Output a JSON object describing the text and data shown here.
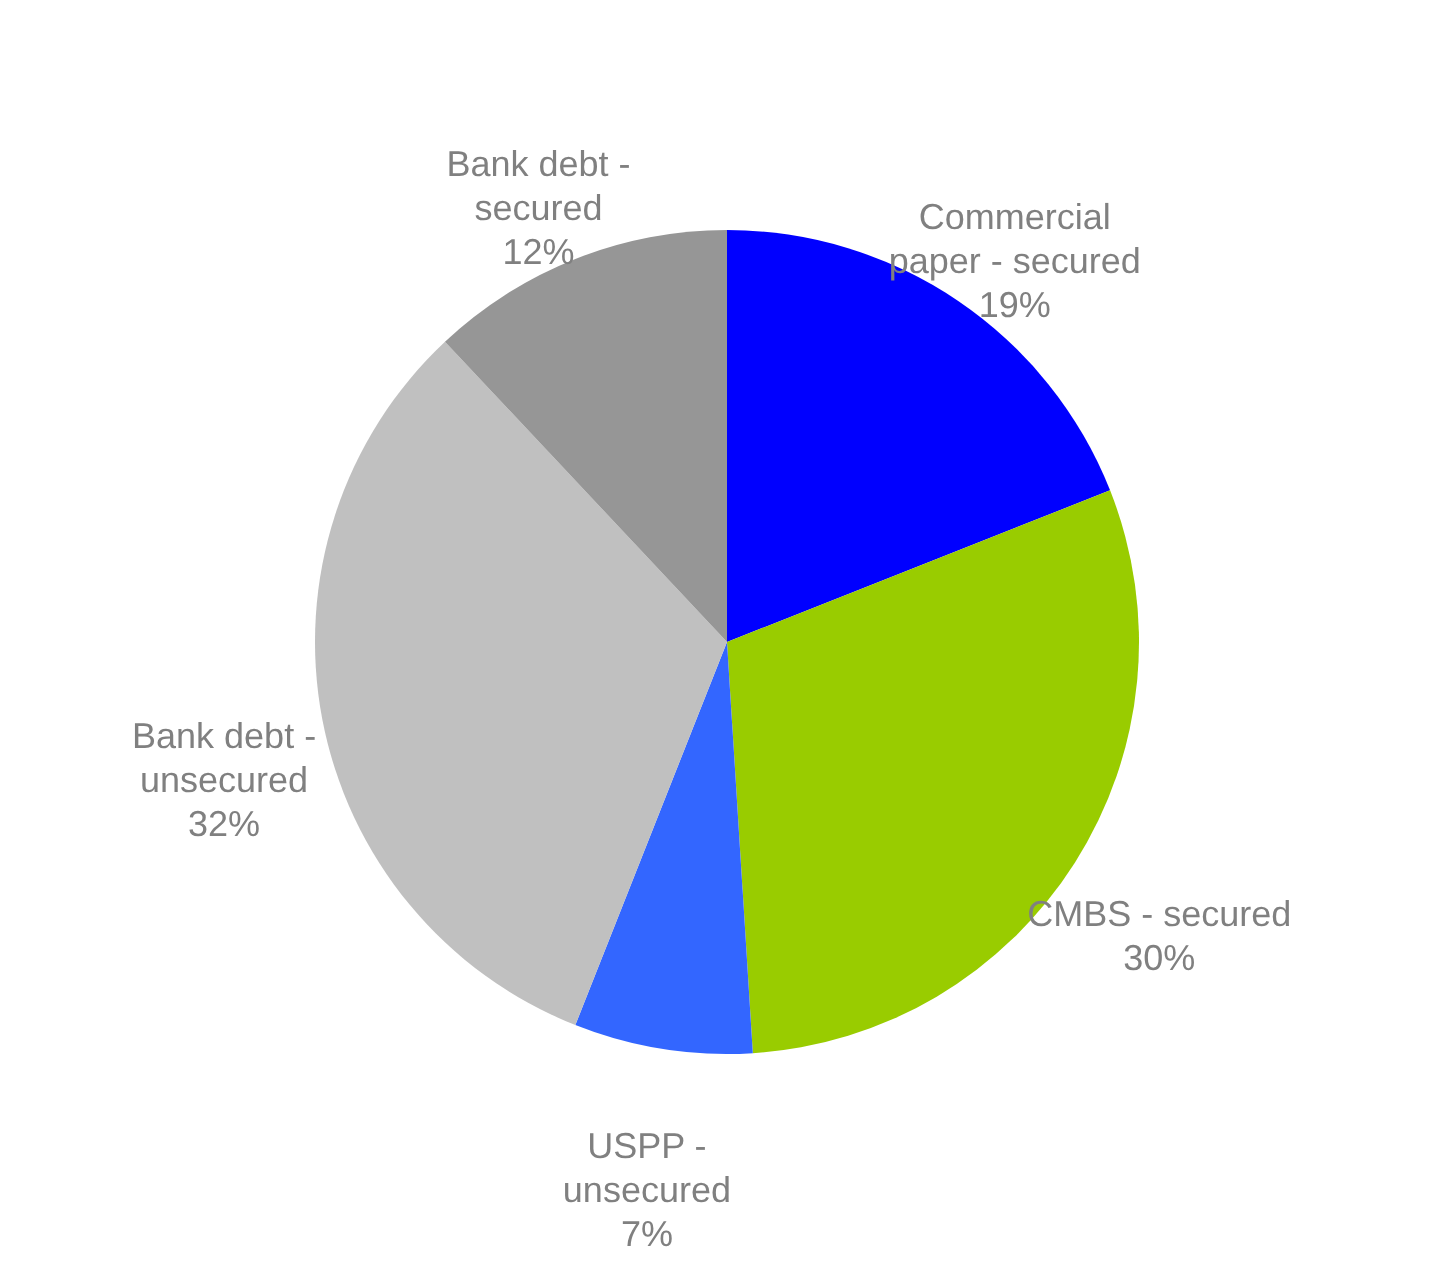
{
  "chart_data": {
    "type": "pie",
    "categories": [
      "Commercial paper - secured",
      "CMBS - secured",
      "USPP - unsecured",
      "Bank debt - unsecured",
      "Bank debt - secured"
    ],
    "values": [
      19,
      30,
      7,
      32,
      12
    ],
    "colors": [
      "#0000ff",
      "#99cc00",
      "#3366ff",
      "#c0c0c0",
      "#969696"
    ],
    "value_labels": [
      "19%",
      "30%",
      "7%",
      "32%",
      "12%"
    ]
  }
}
